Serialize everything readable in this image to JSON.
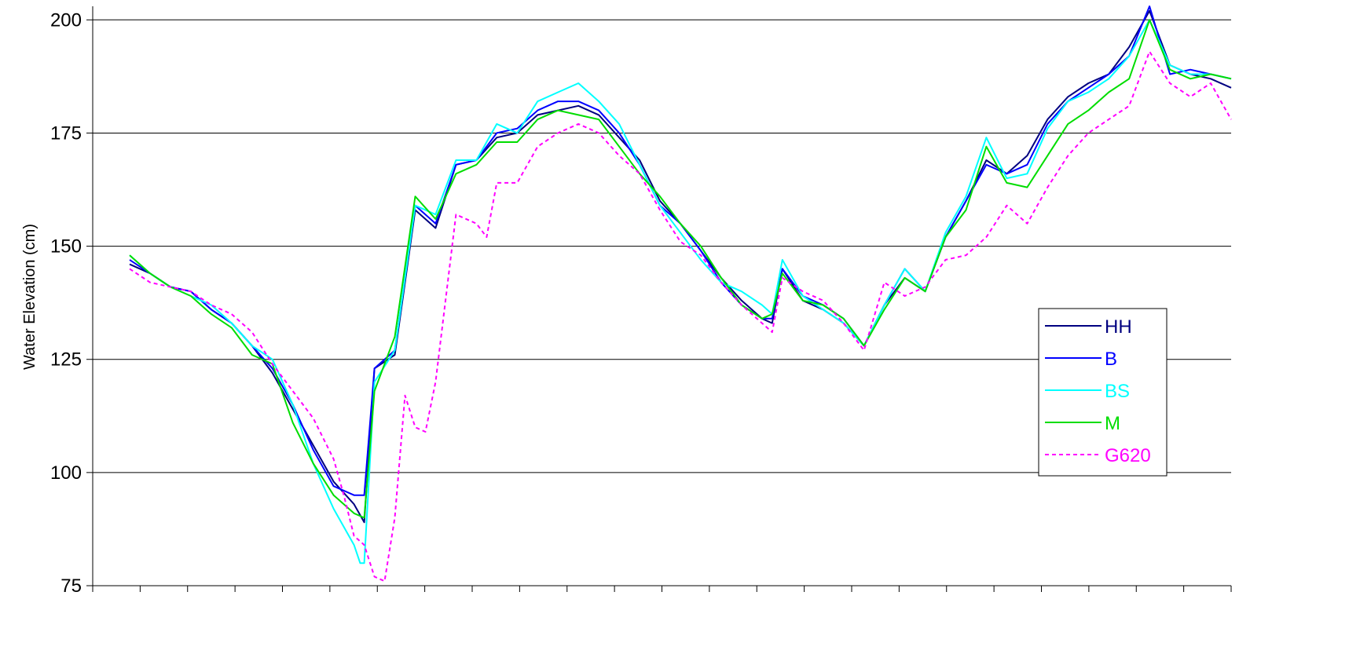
{
  "chart_data": {
    "type": "line",
    "ylabel": "Water Elevation (cm)",
    "ylim": [
      75,
      203
    ],
    "yticks": [
      75,
      100,
      125,
      150,
      175,
      200
    ],
    "x_tick_count": 24,
    "gridlines": "horizontal",
    "legend_position": "right",
    "series": [
      {
        "name": "HH",
        "color": "#000080",
        "dash": "",
        "points": [
          [
            0,
            146
          ],
          [
            1,
            144
          ],
          [
            2,
            141
          ],
          [
            3,
            140
          ],
          [
            4,
            136
          ],
          [
            5,
            133
          ],
          [
            6,
            128
          ],
          [
            7,
            122
          ],
          [
            8,
            114
          ],
          [
            9,
            106
          ],
          [
            10,
            98
          ],
          [
            11,
            93
          ],
          [
            11.5,
            89
          ],
          [
            12,
            123
          ],
          [
            13,
            126
          ],
          [
            14,
            158
          ],
          [
            15,
            154
          ],
          [
            16,
            168
          ],
          [
            17,
            169
          ],
          [
            18,
            174
          ],
          [
            19,
            175
          ],
          [
            20,
            179
          ],
          [
            21,
            180
          ],
          [
            22,
            181
          ],
          [
            23,
            179
          ],
          [
            24,
            174
          ],
          [
            25,
            169
          ],
          [
            26,
            160
          ],
          [
            27,
            155
          ],
          [
            28,
            149
          ],
          [
            29,
            143
          ],
          [
            30,
            138
          ],
          [
            31,
            134
          ],
          [
            31.5,
            133
          ],
          [
            32,
            145
          ],
          [
            33,
            138
          ],
          [
            34,
            136
          ],
          [
            35,
            133
          ],
          [
            36,
            128
          ],
          [
            37,
            137
          ],
          [
            38,
            143
          ],
          [
            39,
            140
          ],
          [
            40,
            152
          ],
          [
            41,
            160
          ],
          [
            42,
            169
          ],
          [
            43,
            166
          ],
          [
            44,
            170
          ],
          [
            45,
            178
          ],
          [
            46,
            183
          ],
          [
            47,
            186
          ],
          [
            48,
            188
          ],
          [
            49,
            194
          ],
          [
            50,
            202
          ],
          [
            51,
            190
          ],
          [
            52,
            188
          ],
          [
            53,
            187
          ],
          [
            54,
            185
          ]
        ]
      },
      {
        "name": "B",
        "color": "#0000ff",
        "dash": "",
        "points": [
          [
            0,
            147
          ],
          [
            1,
            144
          ],
          [
            2,
            141
          ],
          [
            3,
            140
          ],
          [
            4,
            136
          ],
          [
            5,
            133
          ],
          [
            6,
            128
          ],
          [
            7,
            123
          ],
          [
            8,
            115
          ],
          [
            9,
            105
          ],
          [
            10,
            97
          ],
          [
            11,
            95
          ],
          [
            11.5,
            95
          ],
          [
            12,
            123
          ],
          [
            13,
            127
          ],
          [
            14,
            159
          ],
          [
            15,
            155
          ],
          [
            16,
            168
          ],
          [
            17,
            169
          ],
          [
            18,
            175
          ],
          [
            19,
            176
          ],
          [
            20,
            180
          ],
          [
            21,
            182
          ],
          [
            22,
            182
          ],
          [
            23,
            180
          ],
          [
            24,
            175
          ],
          [
            25,
            168
          ],
          [
            26,
            159
          ],
          [
            27,
            155
          ],
          [
            28,
            149
          ],
          [
            29,
            142
          ],
          [
            30,
            137
          ],
          [
            31,
            134
          ],
          [
            31.5,
            134
          ],
          [
            32,
            145
          ],
          [
            33,
            139
          ],
          [
            34,
            137
          ],
          [
            35,
            134
          ],
          [
            36,
            128
          ],
          [
            37,
            137
          ],
          [
            38,
            145
          ],
          [
            39,
            140
          ],
          [
            40,
            152
          ],
          [
            41,
            160
          ],
          [
            42,
            168
          ],
          [
            43,
            166
          ],
          [
            44,
            168
          ],
          [
            45,
            177
          ],
          [
            46,
            182
          ],
          [
            47,
            185
          ],
          [
            48,
            188
          ],
          [
            49,
            192
          ],
          [
            50,
            203
          ],
          [
            51,
            188
          ],
          [
            52,
            189
          ],
          [
            53,
            188
          ],
          [
            54,
            187
          ]
        ]
      },
      {
        "name": "BS",
        "color": "#00ffff",
        "dash": "",
        "points": [
          [
            0,
            148
          ],
          [
            1,
            144
          ],
          [
            2,
            141
          ],
          [
            3,
            139
          ],
          [
            4,
            137
          ],
          [
            5,
            133
          ],
          [
            6,
            128
          ],
          [
            7,
            125
          ],
          [
            8,
            115
          ],
          [
            9,
            102
          ],
          [
            10,
            92
          ],
          [
            11,
            84
          ],
          [
            11.3,
            80
          ],
          [
            11.5,
            80
          ],
          [
            12,
            120
          ],
          [
            13,
            127
          ],
          [
            14,
            159
          ],
          [
            15,
            157
          ],
          [
            16,
            169
          ],
          [
            17,
            169
          ],
          [
            18,
            177
          ],
          [
            19,
            175
          ],
          [
            20,
            182
          ],
          [
            21,
            184
          ],
          [
            22,
            186
          ],
          [
            23,
            182
          ],
          [
            24,
            177
          ],
          [
            25,
            168
          ],
          [
            26,
            159
          ],
          [
            27,
            153
          ],
          [
            28,
            147
          ],
          [
            29,
            142
          ],
          [
            30,
            140
          ],
          [
            31,
            137
          ],
          [
            31.5,
            135
          ],
          [
            32,
            147
          ],
          [
            33,
            139
          ],
          [
            34,
            136
          ],
          [
            35,
            133
          ],
          [
            36,
            128
          ],
          [
            37,
            137
          ],
          [
            38,
            145
          ],
          [
            39,
            140
          ],
          [
            40,
            153
          ],
          [
            41,
            161
          ],
          [
            42,
            174
          ],
          [
            43,
            165
          ],
          [
            44,
            166
          ],
          [
            45,
            176
          ],
          [
            46,
            182
          ],
          [
            47,
            184
          ],
          [
            48,
            187
          ],
          [
            49,
            192
          ],
          [
            50,
            200
          ],
          [
            51,
            190
          ],
          [
            52,
            188
          ],
          [
            53,
            188
          ],
          [
            54,
            187
          ]
        ]
      },
      {
        "name": "M",
        "color": "#00dd00",
        "dash": "",
        "points": [
          [
            0,
            148
          ],
          [
            1,
            144
          ],
          [
            2,
            141
          ],
          [
            3,
            139
          ],
          [
            4,
            135
          ],
          [
            5,
            132
          ],
          [
            6,
            126
          ],
          [
            7,
            124
          ],
          [
            8,
            111
          ],
          [
            9,
            102
          ],
          [
            10,
            95
          ],
          [
            11,
            91
          ],
          [
            11.5,
            90
          ],
          [
            12,
            118
          ],
          [
            13,
            130
          ],
          [
            14,
            161
          ],
          [
            15,
            156
          ],
          [
            16,
            166
          ],
          [
            17,
            168
          ],
          [
            18,
            173
          ],
          [
            19,
            173
          ],
          [
            20,
            178
          ],
          [
            21,
            180
          ],
          [
            22,
            179
          ],
          [
            23,
            178
          ],
          [
            24,
            172
          ],
          [
            25,
            166
          ],
          [
            26,
            161
          ],
          [
            27,
            155
          ],
          [
            28,
            150
          ],
          [
            29,
            143
          ],
          [
            30,
            137
          ],
          [
            31,
            134
          ],
          [
            31.5,
            135
          ],
          [
            32,
            144
          ],
          [
            33,
            138
          ],
          [
            34,
            137
          ],
          [
            35,
            134
          ],
          [
            36,
            128
          ],
          [
            37,
            136
          ],
          [
            38,
            143
          ],
          [
            39,
            140
          ],
          [
            40,
            152
          ],
          [
            41,
            158
          ],
          [
            42,
            172
          ],
          [
            43,
            164
          ],
          [
            44,
            163
          ],
          [
            45,
            170
          ],
          [
            46,
            177
          ],
          [
            47,
            180
          ],
          [
            48,
            184
          ],
          [
            49,
            187
          ],
          [
            50,
            200
          ],
          [
            51,
            189
          ],
          [
            52,
            187
          ],
          [
            53,
            188
          ],
          [
            54,
            187
          ]
        ]
      },
      {
        "name": "G620",
        "color": "#ff00ff",
        "dash": "5,4",
        "points": [
          [
            0,
            145
          ],
          [
            1,
            142
          ],
          [
            2,
            141
          ],
          [
            3,
            140
          ],
          [
            4,
            137
          ],
          [
            5,
            135
          ],
          [
            6,
            131
          ],
          [
            7,
            124
          ],
          [
            8,
            118
          ],
          [
            9,
            112
          ],
          [
            10,
            103
          ],
          [
            10.5,
            95
          ],
          [
            11,
            86
          ],
          [
            11.5,
            84
          ],
          [
            12,
            77
          ],
          [
            12.5,
            76
          ],
          [
            13,
            90
          ],
          [
            13.5,
            117
          ],
          [
            14,
            110
          ],
          [
            14.5,
            109
          ],
          [
            15,
            120
          ],
          [
            16,
            157
          ],
          [
            17,
            155
          ],
          [
            17.5,
            152
          ],
          [
            18,
            164
          ],
          [
            19,
            164
          ],
          [
            20,
            172
          ],
          [
            21,
            175
          ],
          [
            22,
            177
          ],
          [
            23,
            175
          ],
          [
            24,
            170
          ],
          [
            25,
            166
          ],
          [
            26,
            158
          ],
          [
            27,
            151
          ],
          [
            28,
            148
          ],
          [
            29,
            142
          ],
          [
            30,
            137
          ],
          [
            31,
            133
          ],
          [
            31.5,
            131
          ],
          [
            32,
            143
          ],
          [
            33,
            140
          ],
          [
            34,
            138
          ],
          [
            35,
            133
          ],
          [
            36,
            127
          ],
          [
            37,
            142
          ],
          [
            38,
            139
          ],
          [
            39,
            141
          ],
          [
            40,
            147
          ],
          [
            41,
            148
          ],
          [
            42,
            152
          ],
          [
            43,
            159
          ],
          [
            44,
            155
          ],
          [
            45,
            163
          ],
          [
            46,
            170
          ],
          [
            47,
            175
          ],
          [
            48,
            178
          ],
          [
            49,
            181
          ],
          [
            50,
            193
          ],
          [
            51,
            186
          ],
          [
            52,
            183
          ],
          [
            53,
            186
          ],
          [
            54,
            178
          ]
        ]
      }
    ]
  }
}
